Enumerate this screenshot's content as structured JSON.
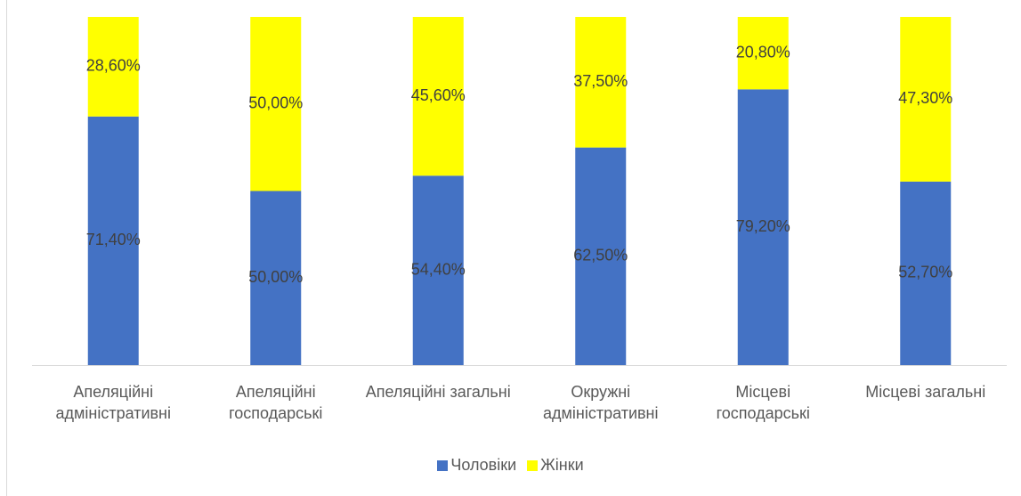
{
  "chart_data": {
    "type": "stacked_bar",
    "categories": [
      "Апеляційні адміністративні",
      "Апеляційні господарські",
      "Апеляційні загальні",
      "Окружні адміністративні",
      "Місцеві господарські",
      "Місцеві загальні"
    ],
    "series": [
      {
        "name": "Чоловіки",
        "color": "#4472c4",
        "values": [
          71.4,
          50,
          54.4,
          62.5,
          79.2,
          52.7
        ],
        "value_labels": [
          "71,40%",
          "50,00%",
          "54,40%",
          "62,50%",
          "79,20%",
          "52,70%"
        ]
      },
      {
        "name": "Жінки",
        "color": "#ffff00",
        "values": [
          28.6,
          50,
          45.6,
          37.5,
          20.8,
          47.3
        ],
        "value_labels": [
          "28,60%",
          "50,00%",
          "45,60%",
          "37,50%",
          "20,80%",
          "47,30%"
        ]
      }
    ],
    "legend": "bottom"
  }
}
